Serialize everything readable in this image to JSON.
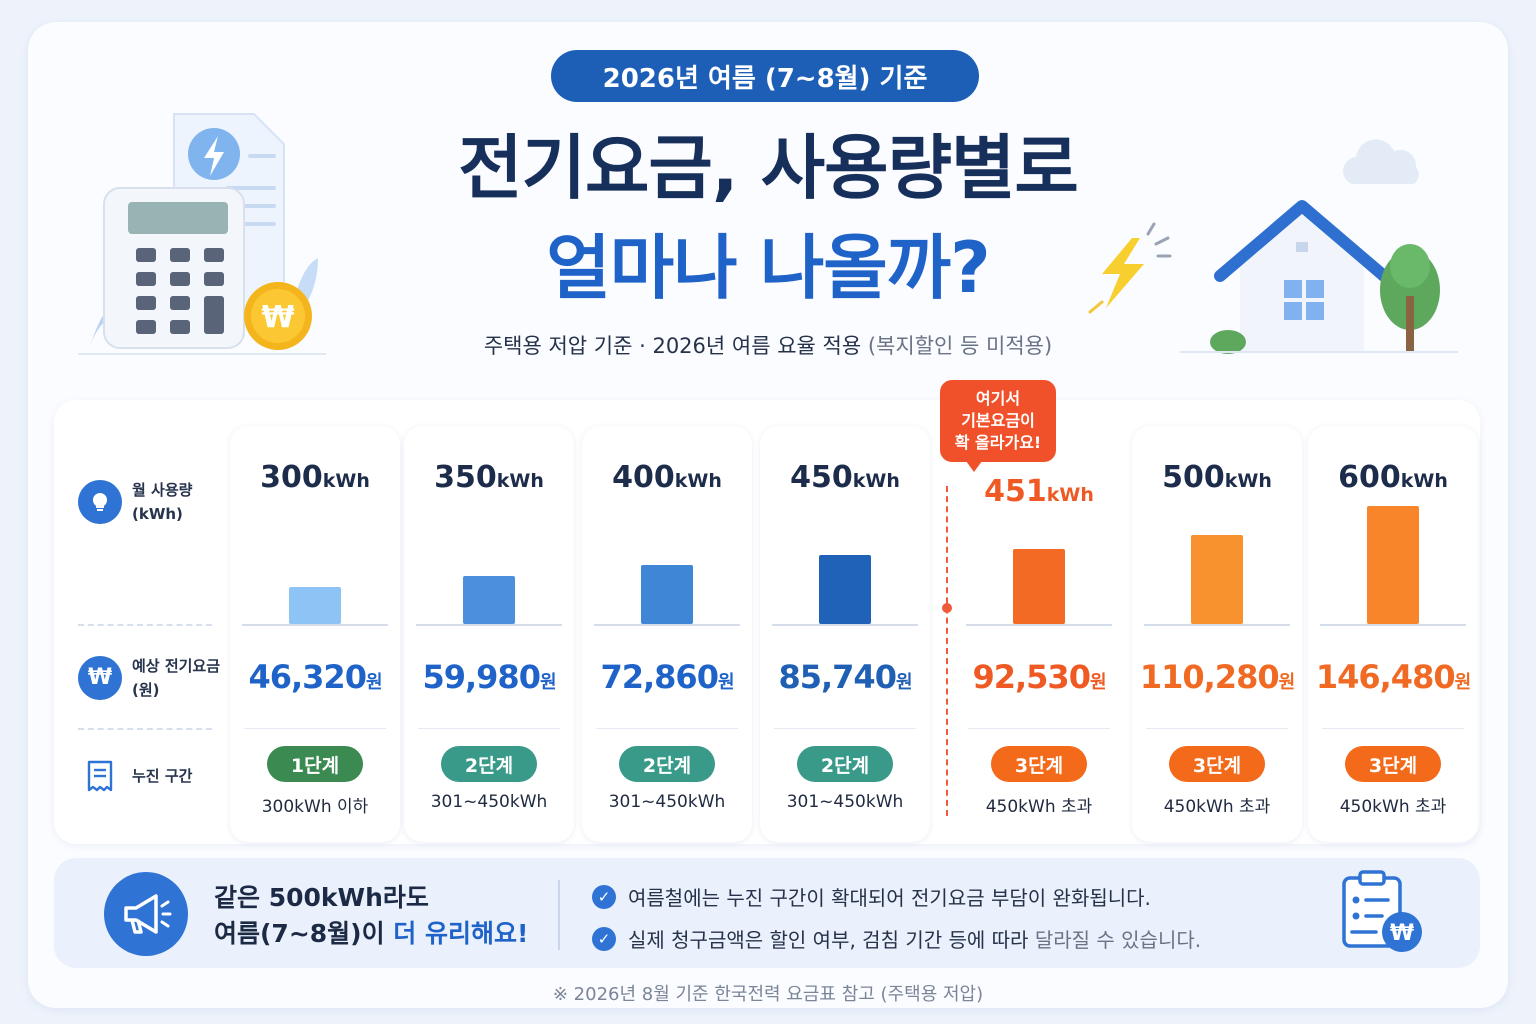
{
  "header": {
    "pill": "2026년 여름 (7~8월) 기준",
    "title_line1": "전기요금, 사용량별로",
    "title_line2": "얼마나 나올까?",
    "subtitle": "주택용 저압 기준 · 2026년 여름 요율 적용",
    "subtitle_muted": "(복지할인 등 미적용)"
  },
  "row_labels": {
    "usage": "월 사용량",
    "usage_unit": "(kWh)",
    "fee": "예상 전기요금",
    "fee_unit": "(원)",
    "tier": "누진 구간"
  },
  "callout": {
    "line1": "여기서",
    "line2": "기본요금이",
    "line3": "확 올라가요!"
  },
  "chart_data": {
    "type": "bar",
    "unit_usage": "kWh",
    "unit_fee": "원",
    "columns": [
      {
        "usage": "300",
        "fee": "46,320",
        "fee_value": 46320,
        "tier": "1단계",
        "range": "300kWh 이하"
      },
      {
        "usage": "350",
        "fee": "59,980",
        "fee_value": 59980,
        "tier": "2단계",
        "range": "301~450kWh"
      },
      {
        "usage": "400",
        "fee": "72,860",
        "fee_value": 72860,
        "tier": "2단계",
        "range": "301~450kWh"
      },
      {
        "usage": "450",
        "fee": "85,740",
        "fee_value": 85740,
        "tier": "2단계",
        "range": "301~450kWh"
      },
      {
        "usage": "451",
        "fee": "92,530",
        "fee_value": 92530,
        "tier": "3단계",
        "range": "450kWh 초과"
      },
      {
        "usage": "500",
        "fee": "110,280",
        "fee_value": 110280,
        "tier": "3단계",
        "range": "450kWh 초과"
      },
      {
        "usage": "600",
        "fee": "146,480",
        "fee_value": 146480,
        "tier": "3단계",
        "range": "450kWh 초과"
      }
    ],
    "colors": {
      "bar": [
        "#8ec3f5",
        "#4c8fdc",
        "#3f86d6",
        "#1f62b8",
        "#f36a25",
        "#f8922f",
        "#f8852a"
      ],
      "fee": [
        "#1f63c9",
        "#1f63c9",
        "#1f63c9",
        "#1f5fb4",
        "#ef5a24",
        "#f06a24",
        "#f06a24"
      ],
      "usage_highlight": "#ef5a24",
      "tier": {
        "1단계": "#3a8a52",
        "2단계": "#3a9a8a",
        "3단계": "#f36a1a"
      }
    }
  },
  "bottom": {
    "headline_line1": "같은 500kWh라도",
    "headline_line2_a": "여름(7~8월)이 ",
    "headline_line2_b": "더 유리해요!",
    "note1": "여름철에는 누진 구간이 확대되어 전기요금 부담이 완화됩니다.",
    "note2_a": "실제 청구금액은 할인 여부, 검침 기간 등에 따라 ",
    "note2_b": "달라질 수 있습니다.",
    "footnote": "※ 2026년 8월 기준 한국전력 요금표 참고 (주택용 저압)"
  },
  "icons": [
    "lightning-icon",
    "calculator-icon",
    "won-coin-icon",
    "house-icon",
    "tree-icon",
    "cloud-icon",
    "bulb-icon",
    "won-icon",
    "receipt-icon",
    "megaphone-icon",
    "clipboard-won-icon",
    "check-icon"
  ]
}
